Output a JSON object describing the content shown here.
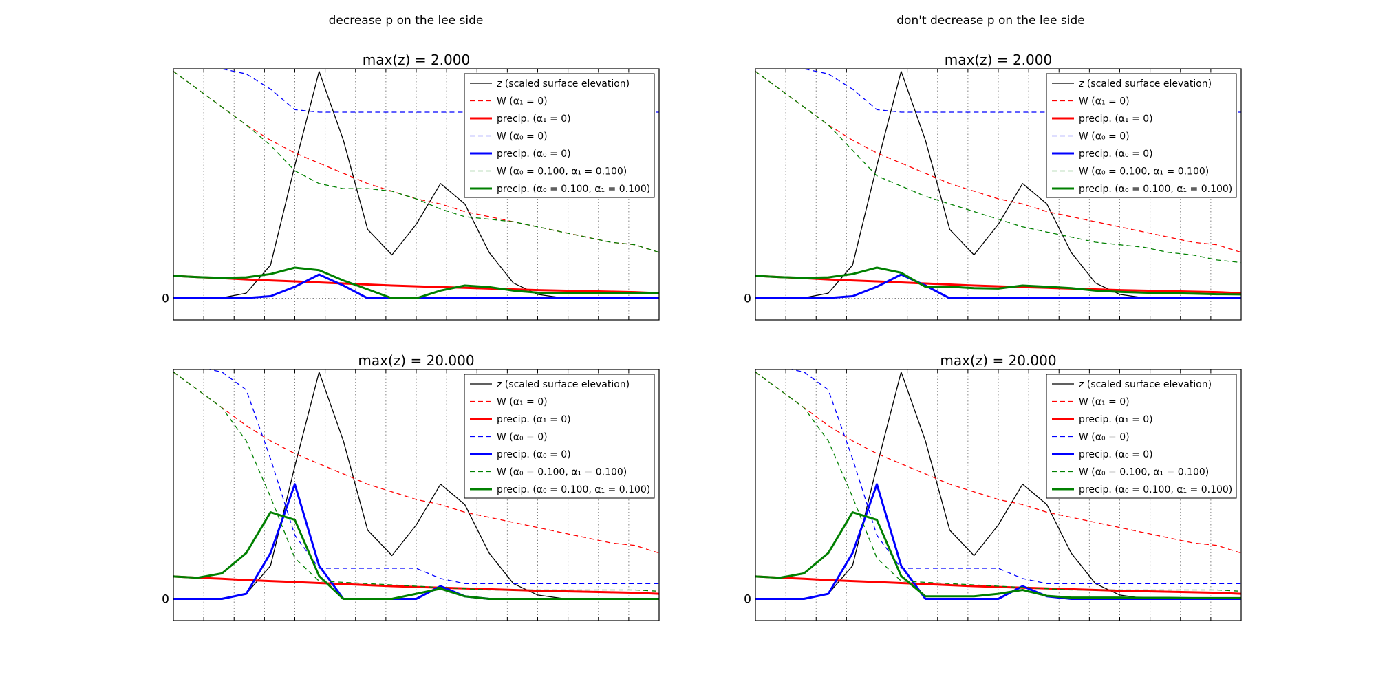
{
  "figure": {
    "column_titles": [
      "decrease p on the lee side",
      "don't decrease p on the lee side"
    ]
  },
  "legend": {
    "entries": [
      {
        "prefix": "",
        "mid": "z",
        "suffix": " (scaled surface elevation)",
        "color": "#000000",
        "dash": "solid",
        "width": 1.3
      },
      {
        "prefix": "W (",
        "mid": "α₁",
        "suffix": " = 0)",
        "color": "#ff0000",
        "dash": "dashed",
        "width": 1.3
      },
      {
        "prefix": "precip. (",
        "mid": "α₁",
        "suffix": " = 0)",
        "color": "#ff0000",
        "dash": "solid",
        "width": 3
      },
      {
        "prefix": "W (",
        "mid": "α₀",
        "suffix": " = 0)",
        "color": "#0000ff",
        "dash": "dashed",
        "width": 1.3
      },
      {
        "prefix": "precip. (",
        "mid": "α₀",
        "suffix": " = 0)",
        "color": "#0000ff",
        "dash": "solid",
        "width": 3
      },
      {
        "prefix": "W (",
        "mid": "α₀",
        "suffix": " = 0.100, α₁ = 0.100)",
        "color": "#008000",
        "dash": "dashed",
        "width": 1.3
      },
      {
        "prefix": "precip. (",
        "mid": "α₀",
        "suffix": " = 0.100, α₁ = 0.100)",
        "color": "#008000",
        "dash": "solid",
        "width": 3
      }
    ]
  },
  "chart_data": [
    {
      "type": "line",
      "title": "max(z) = 2.000",
      "column_title": "decrease p on the lee side",
      "x": [
        0,
        0.05,
        0.1,
        0.15,
        0.2,
        0.25,
        0.3,
        0.35,
        0.4,
        0.45,
        0.5,
        0.55,
        0.6,
        0.65,
        0.7,
        0.75,
        0.8,
        0.85,
        0.9,
        0.95,
        1.0
      ],
      "ylim": [
        -0.085,
        0.9
      ],
      "yticks": [
        0
      ],
      "ytick_labels": [
        "0"
      ],
      "x_gridlines": 16,
      "grid": true,
      "legend_position": "upper right",
      "series": [
        {
          "values": [
            0,
            0,
            0.002,
            0.02,
            0.13,
            0.52,
            0.89,
            0.62,
            0.27,
            0.17,
            0.29,
            0.45,
            0.37,
            0.18,
            0.06,
            0.015,
            0.002,
            0,
            0,
            0,
            0
          ]
        },
        {
          "values": [
            0.89,
            0.82,
            0.75,
            0.68,
            0.62,
            0.57,
            0.53,
            0.49,
            0.45,
            0.42,
            0.39,
            0.37,
            0.34,
            0.32,
            0.3,
            0.28,
            0.26,
            0.24,
            0.22,
            0.21,
            0.18
          ]
        },
        {
          "values": [
            0.088,
            0.083,
            0.079,
            0.074,
            0.07,
            0.066,
            0.062,
            0.058,
            0.054,
            0.05,
            0.047,
            0.044,
            0.041,
            0.038,
            0.035,
            0.032,
            0.03,
            0.028,
            0.026,
            0.024,
            0.02
          ]
        },
        {
          "values": [
            0.92,
            0.91,
            0.9,
            0.88,
            0.82,
            0.74,
            0.73,
            0.73,
            0.73,
            0.73,
            0.73,
            0.73,
            0.73,
            0.73,
            0.73,
            0.73,
            0.73,
            0.73,
            0.73,
            0.73,
            0.73
          ]
        },
        {
          "values": [
            0,
            0,
            0,
            0.001,
            0.008,
            0.045,
            0.093,
            0.05,
            0,
            0,
            0,
            0,
            0,
            0,
            0,
            0,
            0,
            0,
            0,
            0,
            0
          ]
        },
        {
          "values": [
            0.89,
            0.82,
            0.75,
            0.68,
            0.6,
            0.5,
            0.45,
            0.43,
            0.43,
            0.42,
            0.39,
            0.35,
            0.32,
            0.31,
            0.3,
            0.28,
            0.26,
            0.24,
            0.22,
            0.21,
            0.18
          ]
        },
        {
          "values": [
            0.088,
            0.083,
            0.08,
            0.082,
            0.095,
            0.12,
            0.11,
            0.07,
            0.035,
            0,
            0,
            0.03,
            0.05,
            0.044,
            0.03,
            0.022,
            0.02,
            0.02,
            0.02,
            0.02,
            0.02
          ]
        }
      ]
    },
    {
      "type": "line",
      "title": "max(z) = 2.000",
      "column_title": "don't decrease p on the lee side",
      "x": [
        0,
        0.05,
        0.1,
        0.15,
        0.2,
        0.25,
        0.3,
        0.35,
        0.4,
        0.45,
        0.5,
        0.55,
        0.6,
        0.65,
        0.7,
        0.75,
        0.8,
        0.85,
        0.9,
        0.95,
        1.0
      ],
      "ylim": [
        -0.085,
        0.9
      ],
      "yticks": [
        0
      ],
      "ytick_labels": [
        "0"
      ],
      "x_gridlines": 16,
      "grid": true,
      "legend_position": "upper right",
      "series": [
        {
          "values": [
            0,
            0,
            0.002,
            0.02,
            0.13,
            0.52,
            0.89,
            0.62,
            0.27,
            0.17,
            0.29,
            0.45,
            0.37,
            0.18,
            0.06,
            0.015,
            0.002,
            0,
            0,
            0,
            0
          ]
        },
        {
          "values": [
            0.89,
            0.82,
            0.75,
            0.68,
            0.62,
            0.57,
            0.53,
            0.49,
            0.45,
            0.42,
            0.39,
            0.37,
            0.34,
            0.32,
            0.3,
            0.28,
            0.26,
            0.24,
            0.22,
            0.21,
            0.18
          ]
        },
        {
          "values": [
            0.088,
            0.083,
            0.079,
            0.074,
            0.07,
            0.066,
            0.062,
            0.058,
            0.054,
            0.05,
            0.047,
            0.044,
            0.041,
            0.038,
            0.035,
            0.032,
            0.03,
            0.028,
            0.026,
            0.024,
            0.02
          ]
        },
        {
          "values": [
            0.92,
            0.91,
            0.9,
            0.88,
            0.82,
            0.74,
            0.73,
            0.73,
            0.73,
            0.73,
            0.73,
            0.73,
            0.73,
            0.73,
            0.73,
            0.73,
            0.73,
            0.73,
            0.73,
            0.73,
            0.73
          ]
        },
        {
          "values": [
            0,
            0,
            0,
            0.001,
            0.008,
            0.045,
            0.093,
            0.05,
            0,
            0,
            0,
            0,
            0,
            0,
            0,
            0,
            0,
            0,
            0,
            0,
            0
          ]
        },
        {
          "values": [
            0.89,
            0.82,
            0.75,
            0.68,
            0.58,
            0.48,
            0.44,
            0.4,
            0.37,
            0.34,
            0.31,
            0.28,
            0.26,
            0.24,
            0.22,
            0.21,
            0.2,
            0.18,
            0.17,
            0.15,
            0.14
          ]
        },
        {
          "values": [
            0.088,
            0.083,
            0.08,
            0.082,
            0.095,
            0.12,
            0.1,
            0.045,
            0.045,
            0.04,
            0.038,
            0.05,
            0.045,
            0.04,
            0.03,
            0.025,
            0.022,
            0.02,
            0.018,
            0.016,
            0.015
          ]
        }
      ]
    },
    {
      "type": "line",
      "title": "max(z) = 20.000",
      "column_title": "decrease p on the lee side",
      "x": [
        0,
        0.05,
        0.1,
        0.15,
        0.2,
        0.25,
        0.3,
        0.35,
        0.4,
        0.45,
        0.5,
        0.55,
        0.6,
        0.65,
        0.7,
        0.75,
        0.8,
        0.85,
        0.9,
        0.95,
        1.0
      ],
      "ylim": [
        -0.085,
        0.9
      ],
      "yticks": [
        0
      ],
      "ytick_labels": [
        "0"
      ],
      "x_gridlines": 16,
      "grid": true,
      "legend_position": "upper right",
      "series": [
        {
          "values": [
            0,
            0,
            0.002,
            0.02,
            0.13,
            0.52,
            0.89,
            0.62,
            0.27,
            0.17,
            0.29,
            0.45,
            0.37,
            0.18,
            0.06,
            0.015,
            0.002,
            0,
            0,
            0,
            0
          ]
        },
        {
          "values": [
            0.89,
            0.82,
            0.75,
            0.68,
            0.62,
            0.57,
            0.53,
            0.49,
            0.45,
            0.42,
            0.39,
            0.37,
            0.34,
            0.32,
            0.3,
            0.28,
            0.26,
            0.24,
            0.22,
            0.21,
            0.18
          ]
        },
        {
          "values": [
            0.088,
            0.083,
            0.079,
            0.074,
            0.07,
            0.066,
            0.062,
            0.058,
            0.054,
            0.05,
            0.047,
            0.044,
            0.041,
            0.038,
            0.035,
            0.032,
            0.03,
            0.028,
            0.026,
            0.024,
            0.02
          ]
        },
        {
          "values": [
            0.92,
            0.91,
            0.89,
            0.82,
            0.55,
            0.25,
            0.12,
            0.12,
            0.12,
            0.12,
            0.12,
            0.08,
            0.06,
            0.06,
            0.06,
            0.06,
            0.06,
            0.06,
            0.06,
            0.06,
            0.06
          ]
        },
        {
          "values": [
            0,
            0,
            0,
            0.02,
            0.18,
            0.45,
            0.13,
            0,
            0,
            0,
            0,
            0.05,
            0.01,
            0,
            0,
            0,
            0,
            0,
            0,
            0,
            0
          ]
        },
        {
          "values": [
            0.89,
            0.82,
            0.75,
            0.62,
            0.4,
            0.16,
            0.07,
            0.065,
            0.06,
            0.055,
            0.05,
            0.045,
            0.04,
            0.035,
            0.035,
            0.035,
            0.035,
            0.035,
            0.035,
            0.035,
            0.03
          ]
        },
        {
          "values": [
            0.088,
            0.083,
            0.1,
            0.18,
            0.34,
            0.31,
            0.09,
            0,
            0,
            0,
            0.02,
            0.04,
            0.01,
            0,
            0,
            0,
            0,
            0,
            0,
            0,
            0
          ]
        }
      ]
    },
    {
      "type": "line",
      "title": "max(z) = 20.000",
      "column_title": "don't decrease p on the lee side",
      "x": [
        0,
        0.05,
        0.1,
        0.15,
        0.2,
        0.25,
        0.3,
        0.35,
        0.4,
        0.45,
        0.5,
        0.55,
        0.6,
        0.65,
        0.7,
        0.75,
        0.8,
        0.85,
        0.9,
        0.95,
        1.0
      ],
      "ylim": [
        -0.085,
        0.9
      ],
      "yticks": [
        0
      ],
      "ytick_labels": [
        "0"
      ],
      "x_gridlines": 16,
      "grid": true,
      "legend_position": "upper right",
      "series": [
        {
          "values": [
            0,
            0,
            0.002,
            0.02,
            0.13,
            0.52,
            0.89,
            0.62,
            0.27,
            0.17,
            0.29,
            0.45,
            0.37,
            0.18,
            0.06,
            0.015,
            0.002,
            0,
            0,
            0,
            0
          ]
        },
        {
          "values": [
            0.89,
            0.82,
            0.75,
            0.68,
            0.62,
            0.57,
            0.53,
            0.49,
            0.45,
            0.42,
            0.39,
            0.37,
            0.34,
            0.32,
            0.3,
            0.28,
            0.26,
            0.24,
            0.22,
            0.21,
            0.18
          ]
        },
        {
          "values": [
            0.088,
            0.083,
            0.079,
            0.074,
            0.07,
            0.066,
            0.062,
            0.058,
            0.054,
            0.05,
            0.047,
            0.044,
            0.041,
            0.038,
            0.035,
            0.032,
            0.03,
            0.028,
            0.026,
            0.024,
            0.02
          ]
        },
        {
          "values": [
            0.92,
            0.91,
            0.89,
            0.82,
            0.55,
            0.25,
            0.12,
            0.12,
            0.12,
            0.12,
            0.12,
            0.08,
            0.06,
            0.06,
            0.06,
            0.06,
            0.06,
            0.06,
            0.06,
            0.06,
            0.06
          ]
        },
        {
          "values": [
            0,
            0,
            0,
            0.02,
            0.18,
            0.45,
            0.13,
            0,
            0,
            0,
            0,
            0.05,
            0.01,
            0,
            0,
            0,
            0,
            0,
            0,
            0,
            0
          ]
        },
        {
          "values": [
            0.89,
            0.82,
            0.75,
            0.62,
            0.4,
            0.16,
            0.07,
            0.065,
            0.06,
            0.055,
            0.05,
            0.045,
            0.04,
            0.035,
            0.035,
            0.035,
            0.035,
            0.035,
            0.035,
            0.035,
            0.03
          ]
        },
        {
          "values": [
            0.088,
            0.083,
            0.1,
            0.18,
            0.34,
            0.31,
            0.09,
            0.01,
            0.01,
            0.01,
            0.02,
            0.035,
            0.012,
            0.005,
            0.005,
            0.005,
            0.004,
            0.004,
            0.003,
            0.003,
            0.003
          ]
        }
      ]
    }
  ]
}
